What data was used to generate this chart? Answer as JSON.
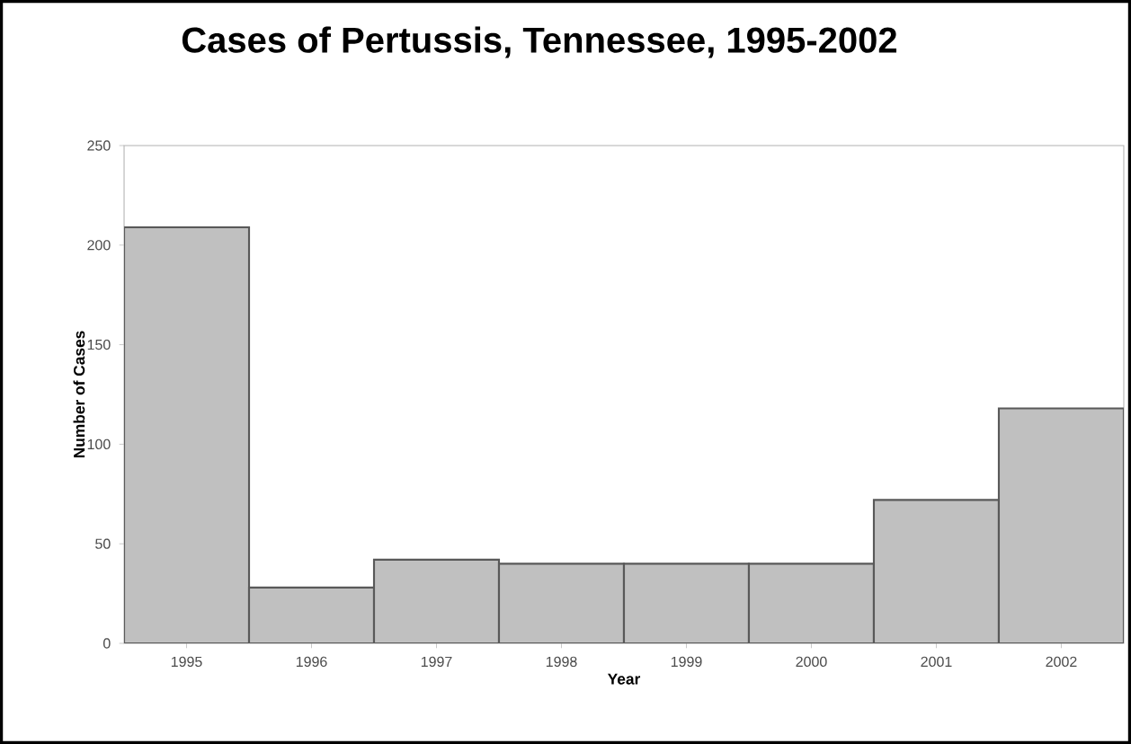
{
  "chart_data": {
    "type": "bar",
    "title": "Cases of Pertussis, Tennessee, 1995-2002",
    "xlabel": "Year",
    "ylabel": "Number of Cases",
    "categories": [
      "1995",
      "1996",
      "1997",
      "1998",
      "1999",
      "2000",
      "2001",
      "2002"
    ],
    "values": [
      209,
      28,
      42,
      40,
      40,
      40,
      72,
      118
    ],
    "color": "#c0c0c0",
    "ylim": [
      0,
      250
    ],
    "yticks": [
      0,
      50,
      100,
      150,
      200,
      250
    ],
    "grid": false
  }
}
